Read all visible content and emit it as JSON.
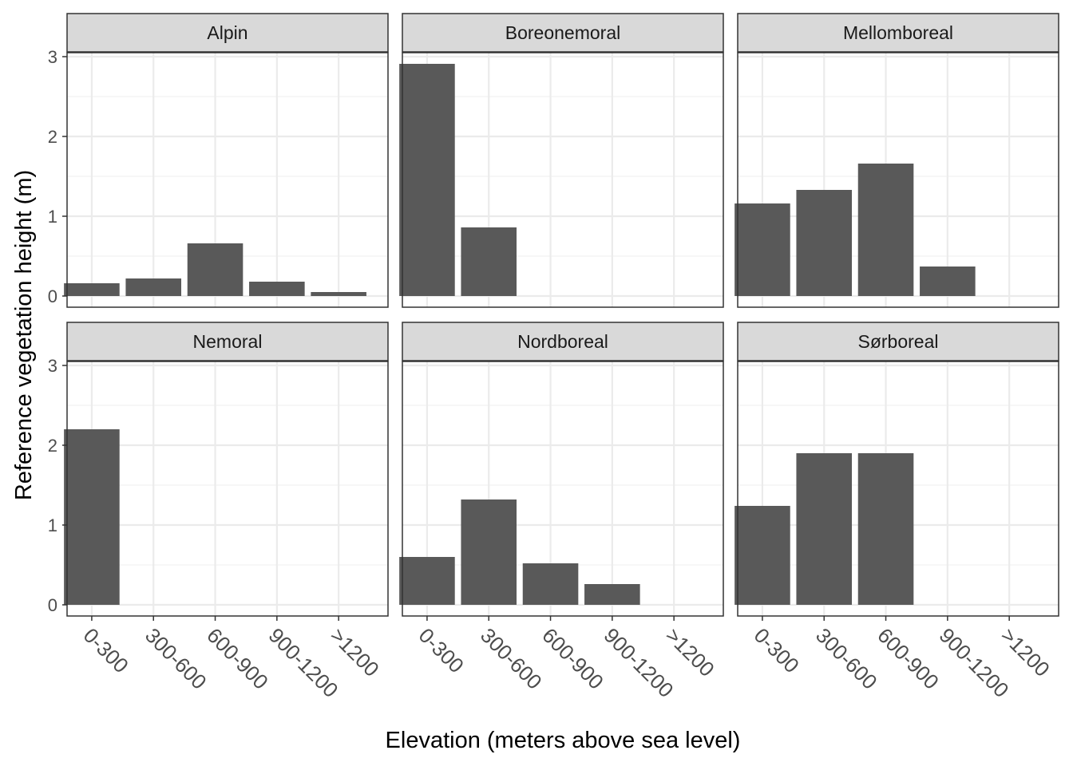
{
  "chart_data": {
    "type": "bar",
    "facets": [
      "Alpin",
      "Boreonemoral",
      "Mellomboreal",
      "Nemoral",
      "Nordboreal",
      "Sørboreal"
    ],
    "categories": [
      "0-300",
      "300-600",
      "600-900",
      "900-1200",
      ">1200"
    ],
    "series": [
      {
        "facet": "Alpin",
        "values": [
          0.16,
          0.22,
          0.66,
          0.18,
          0.05
        ]
      },
      {
        "facet": "Boreonemoral",
        "values": [
          2.91,
          0.86,
          null,
          null,
          null
        ]
      },
      {
        "facet": "Mellomboreal",
        "values": [
          1.16,
          1.33,
          1.66,
          0.37,
          null
        ]
      },
      {
        "facet": "Nemoral",
        "values": [
          2.2,
          null,
          null,
          null,
          null
        ]
      },
      {
        "facet": "Nordboreal",
        "values": [
          0.6,
          1.32,
          0.52,
          0.26,
          null
        ]
      },
      {
        "facet": "Sørboreal",
        "values": [
          1.24,
          1.9,
          1.9,
          null,
          null
        ]
      }
    ],
    "yticks": [
      "0",
      "1",
      "2",
      "3"
    ],
    "ylim": [
      -0.14,
      3.05
    ],
    "xlabel": "Elevation (meters above sea level)",
    "ylabel": "Reference vegetation height (m)",
    "title": "",
    "grid": true,
    "bar_color": "#595959",
    "strip_color": "#d9d9d9"
  }
}
